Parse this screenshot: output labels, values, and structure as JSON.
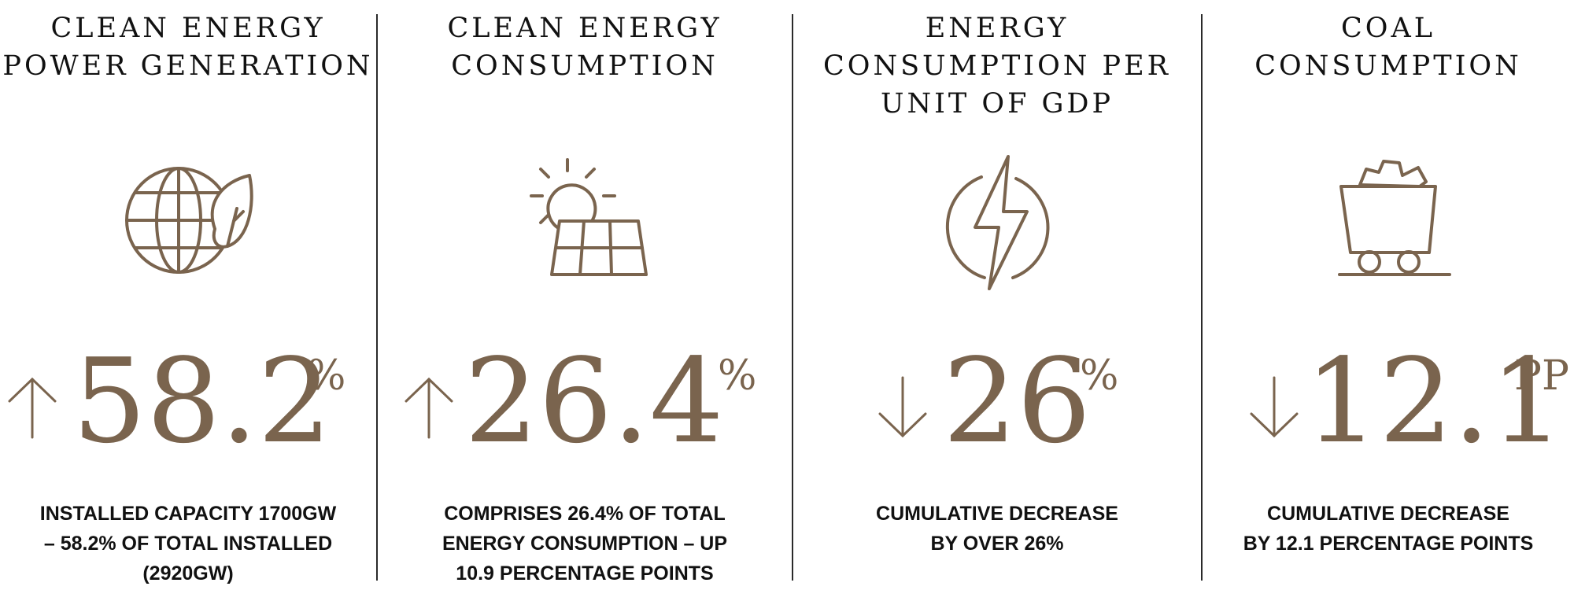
{
  "accent_color": "#7a644e",
  "panels": [
    {
      "title": "CLEAN ENERGY\nPOWER GENERATION",
      "icon": "globe-leaf-icon",
      "direction": "up",
      "value": "58.2",
      "unit": "%",
      "description": "INSTALLED CAPACITY 1700GW\n– 58.2% OF TOTAL INSTALLED\n(2920GW)"
    },
    {
      "title": "CLEAN ENERGY\nCONSUMPTION",
      "icon": "sun-solar-panel-icon",
      "direction": "up",
      "value": "26.4",
      "unit": "%",
      "description": "COMPRISES 26.4% OF TOTAL\nENERGY CONSUMPTION – UP\n10.9 PERCENTAGE POINTS"
    },
    {
      "title": "ENERGY\nCONSUMPTION PER\nUNIT OF GDP",
      "icon": "lightning-bolt-icon",
      "direction": "down",
      "value": "26",
      "unit": "%",
      "description": "CUMULATIVE DECREASE\nBY OVER 26%"
    },
    {
      "title": "COAL\nCONSUMPTION",
      "icon": "coal-cart-icon",
      "direction": "down",
      "value": "12.1",
      "unit": "PP",
      "description": "CUMULATIVE DECREASE\nBY 12.1 PERCENTAGE POINTS"
    }
  ]
}
